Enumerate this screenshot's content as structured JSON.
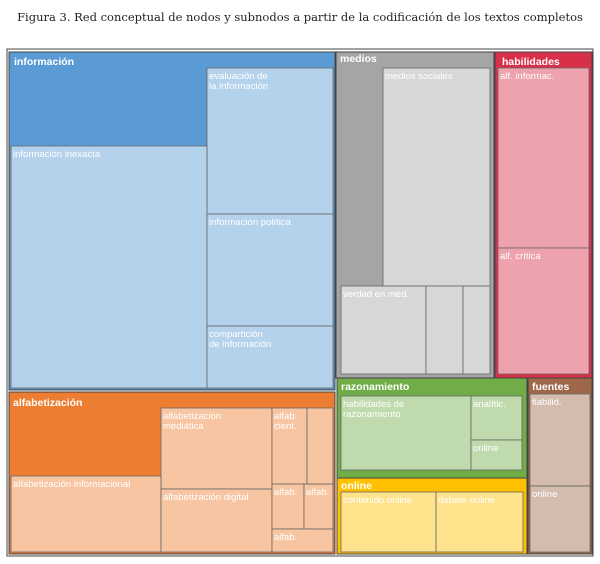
{
  "chart_data": {
    "type": "treemap",
    "title": "Figura 3. Red conceptual de nodos y subnodos a partir de la codificación de los textos completos",
    "colors": {
      "información": "#5B9BD5",
      "medios": "#A5A5A5",
      "habilidades": "#D9304A",
      "alfabetización": "#ED7D31",
      "razonamiento": "#70AD47",
      "fuentes": "#9E6748",
      "online": "#FFC000"
    },
    "nodes": [
      {
        "name": "información",
        "children": [
          "evaluación de la información",
          "información inexacta",
          "información política",
          "compartición de información"
        ]
      },
      {
        "name": "medios",
        "children": [
          "medios sociales",
          "verdad en med."
        ]
      },
      {
        "name": "habilidades",
        "children": [
          "alf. informac.",
          "alf. crítica"
        ]
      },
      {
        "name": "alfabetización",
        "children": [
          "alfabetización mediática",
          "alfab. cient.",
          "alfabetización informacional",
          "alfabetización digital",
          "alfab.",
          "alfab.",
          "alfab."
        ]
      },
      {
        "name": "razonamiento",
        "children": [
          "habilidades de razonamiento",
          "analític.",
          "online"
        ]
      },
      {
        "name": "fuentes",
        "children": [
          "fiabilid.",
          "online"
        ]
      },
      {
        "name": "online",
        "children": [
          "contenido online",
          "debate online"
        ]
      }
    ]
  }
}
